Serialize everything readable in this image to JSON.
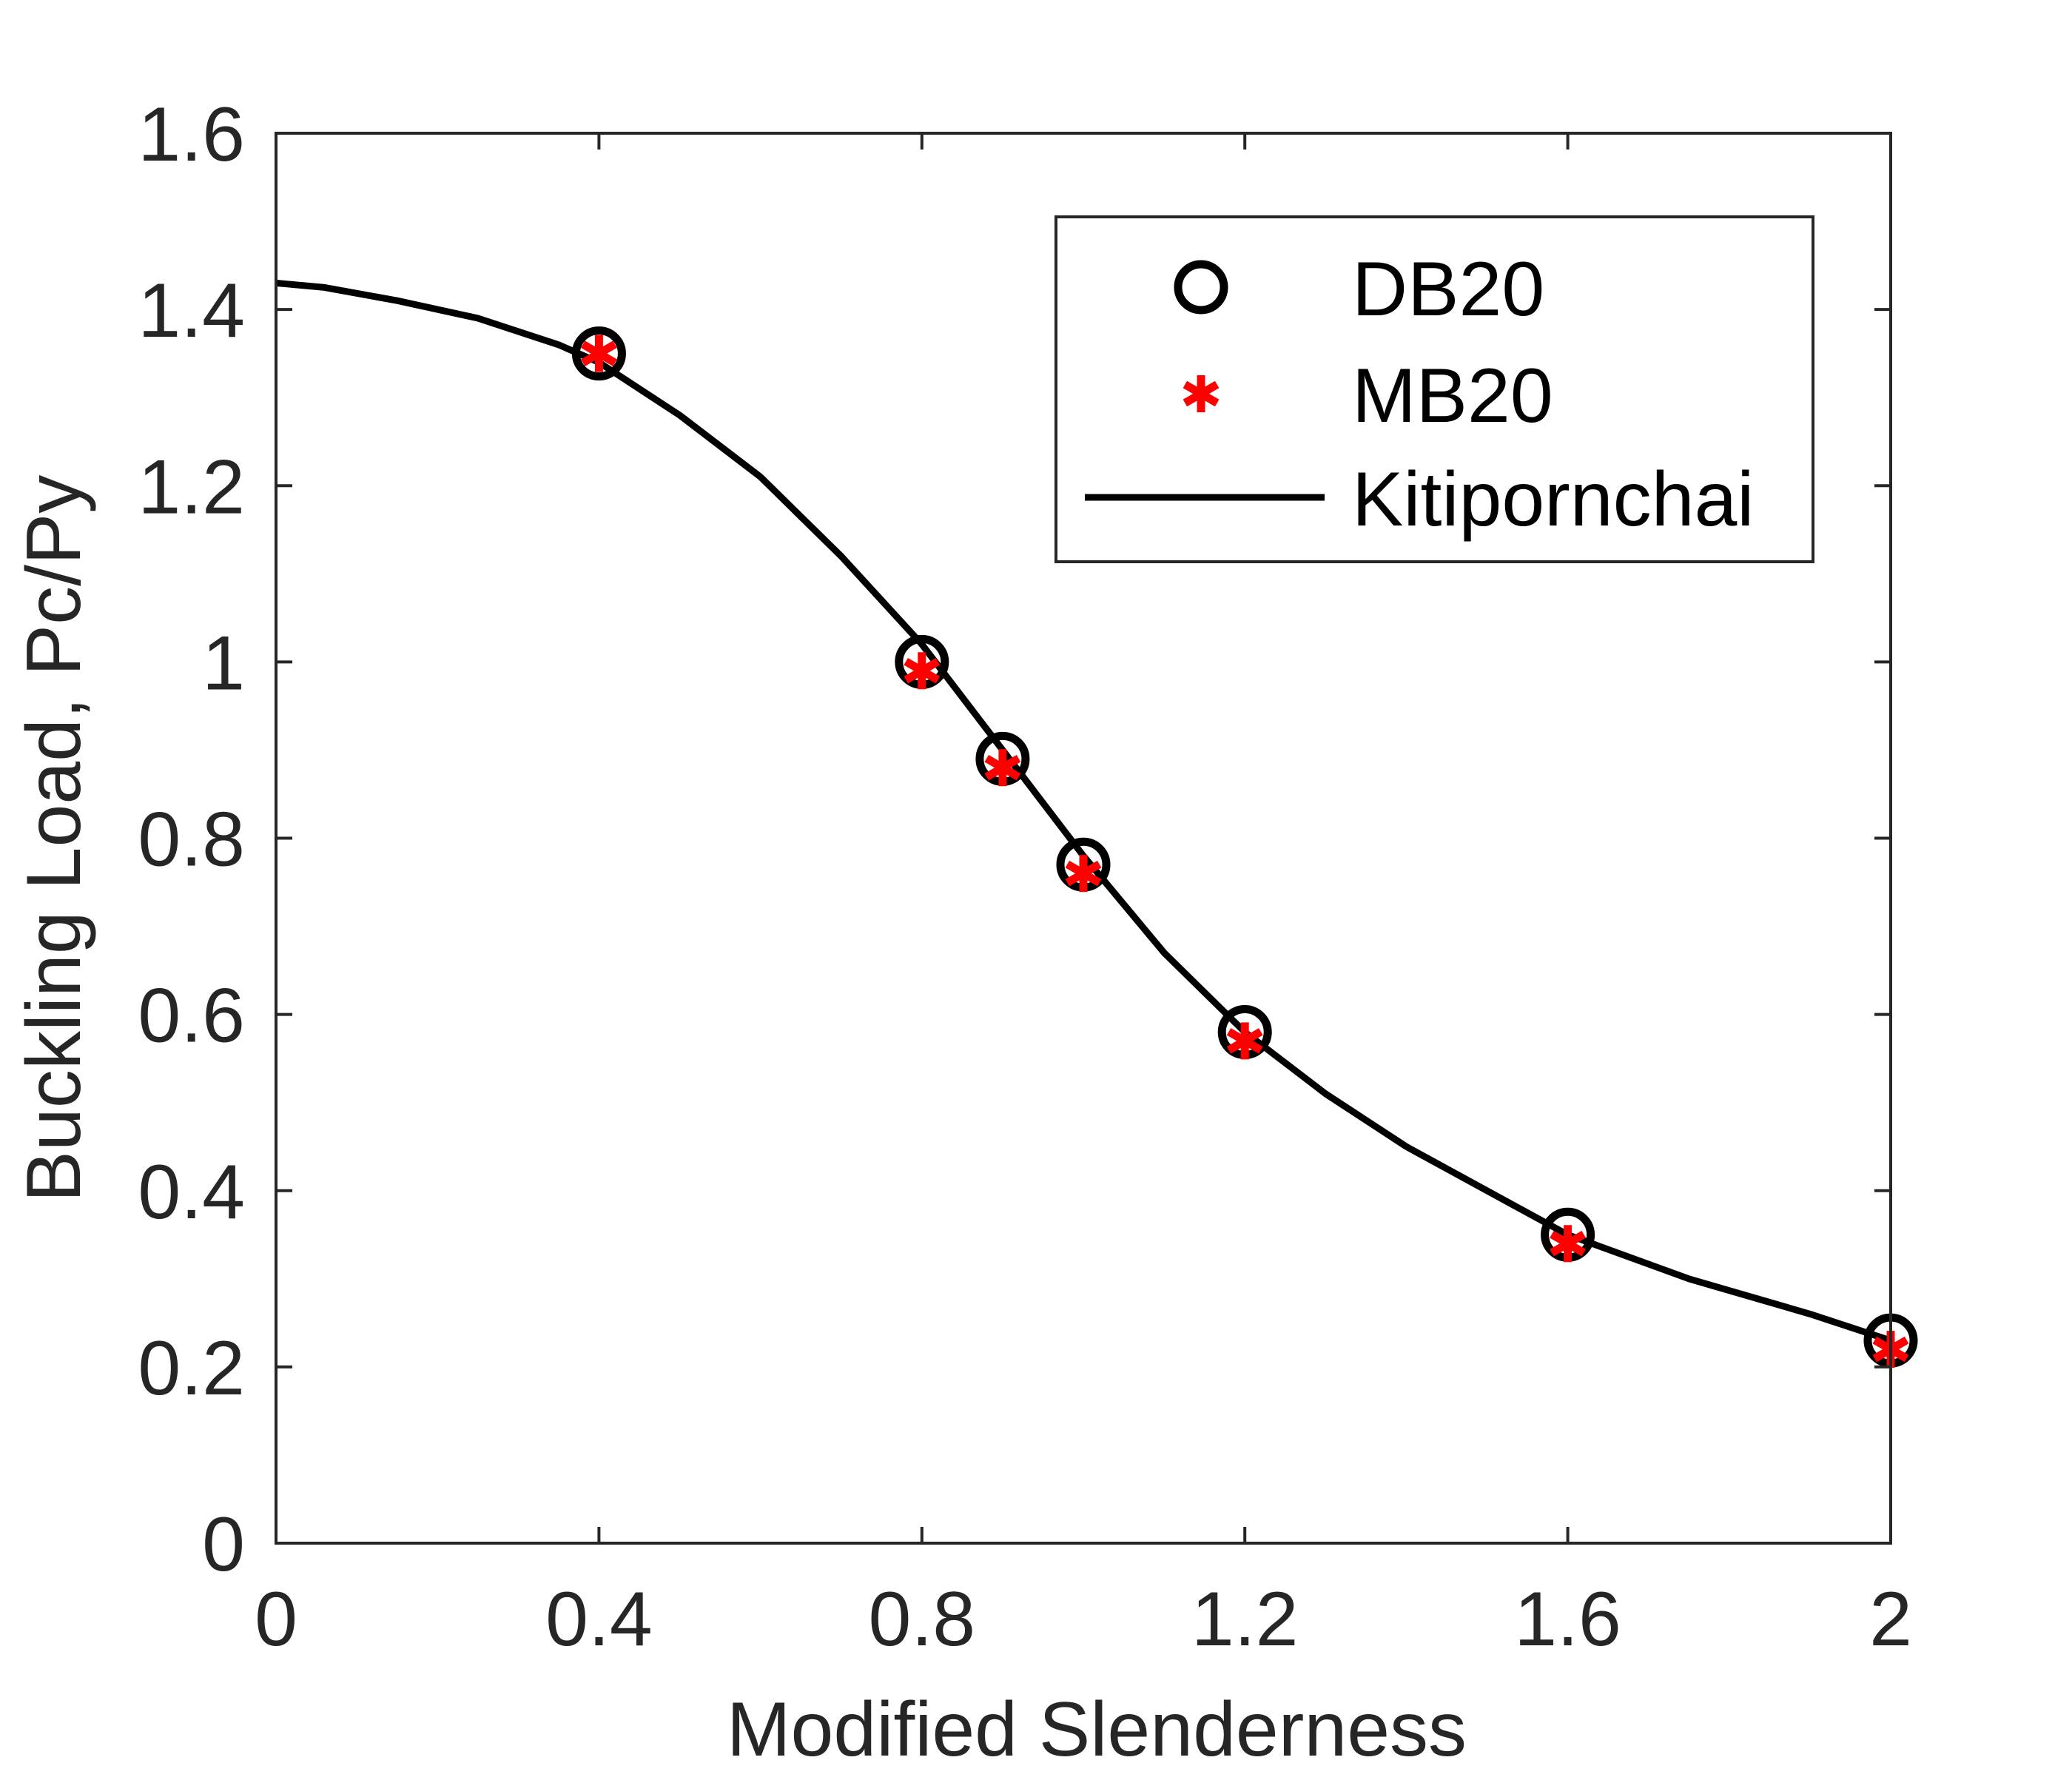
{
  "chart_data": {
    "type": "scatter",
    "title": "",
    "xlabel": "Modified Slenderness",
    "ylabel": "Buckling Load, Pc/Py",
    "xlim": [
      0,
      2
    ],
    "ylim": [
      0,
      1.6
    ],
    "xticks": [
      0,
      0.4,
      0.8,
      1.2,
      1.6,
      2
    ],
    "xtick_labels": [
      "0",
      "0.4",
      "0.8",
      "1.2",
      "1.6",
      "2"
    ],
    "yticks": [
      0,
      0.2,
      0.4,
      0.6,
      0.8,
      1,
      1.2,
      1.4,
      1.6
    ],
    "ytick_labels": [
      "0",
      "0.2",
      "0.4",
      "0.6",
      "0.8",
      "1",
      "1.2",
      "1.4",
      "1.6"
    ],
    "grid": false,
    "legend_position": "top-right",
    "series": [
      {
        "name": "DB20",
        "marker": "circle",
        "color": "#000000",
        "x": [
          0.4,
          0.8,
          0.9,
          1.0,
          1.2,
          1.6,
          2.0
        ],
        "y": [
          1.35,
          1.0,
          0.89,
          0.77,
          0.58,
          0.35,
          0.23
        ]
      },
      {
        "name": "MB20",
        "marker": "asterisk",
        "color": "#ff0000",
        "x": [
          0.4,
          0.8,
          0.9,
          1.0,
          1.2,
          1.6,
          2.0
        ],
        "y": [
          1.35,
          0.99,
          0.88,
          0.76,
          0.57,
          0.34,
          0.22
        ]
      },
      {
        "name": "Kitipornchai",
        "marker": "line",
        "color": "#000000",
        "x": [
          0,
          0.06,
          0.15,
          0.25,
          0.35,
          0.4,
          0.5,
          0.6,
          0.7,
          0.8,
          0.9,
          1.0,
          1.1,
          1.2,
          1.3,
          1.4,
          1.5,
          1.6,
          1.75,
          1.9,
          2.0
        ],
        "y": [
          1.43,
          1.425,
          1.41,
          1.39,
          1.36,
          1.34,
          1.28,
          1.21,
          1.12,
          1.02,
          0.9,
          0.78,
          0.67,
          0.58,
          0.51,
          0.45,
          0.4,
          0.35,
          0.3,
          0.26,
          0.23
        ]
      }
    ]
  }
}
